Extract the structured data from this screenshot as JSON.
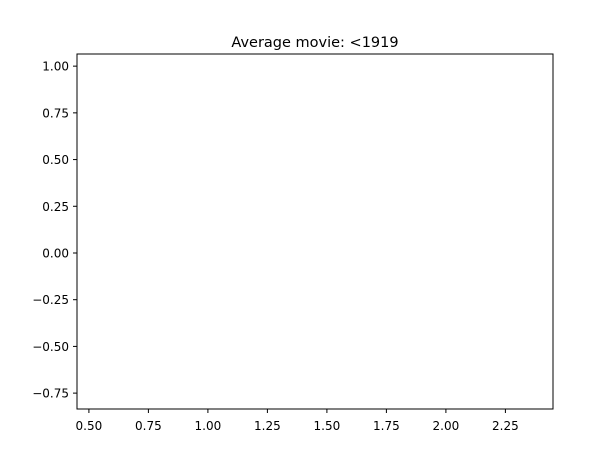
{
  "chart_data": {
    "type": "line",
    "title": "Average movie: <1919",
    "xlabel": "",
    "ylabel": "",
    "xlim": [
      0.45,
      2.45
    ],
    "ylim": [
      -0.835,
      1.065
    ],
    "x_ticks": [
      0.5,
      0.75,
      1.0,
      1.25,
      1.5,
      1.75,
      2.0,
      2.25
    ],
    "x_tick_labels": [
      "0.50",
      "0.75",
      "1.00",
      "1.25",
      "1.50",
      "1.75",
      "2.00",
      "2.25"
    ],
    "y_ticks": [
      -0.75,
      -0.5,
      -0.25,
      0.0,
      0.25,
      0.5,
      0.75,
      1.0
    ],
    "y_tick_labels": [
      "−0.75",
      "−0.50",
      "−0.25",
      "0.00",
      "0.25",
      "0.50",
      "0.75",
      "1.00"
    ],
    "grid": false,
    "series": []
  }
}
